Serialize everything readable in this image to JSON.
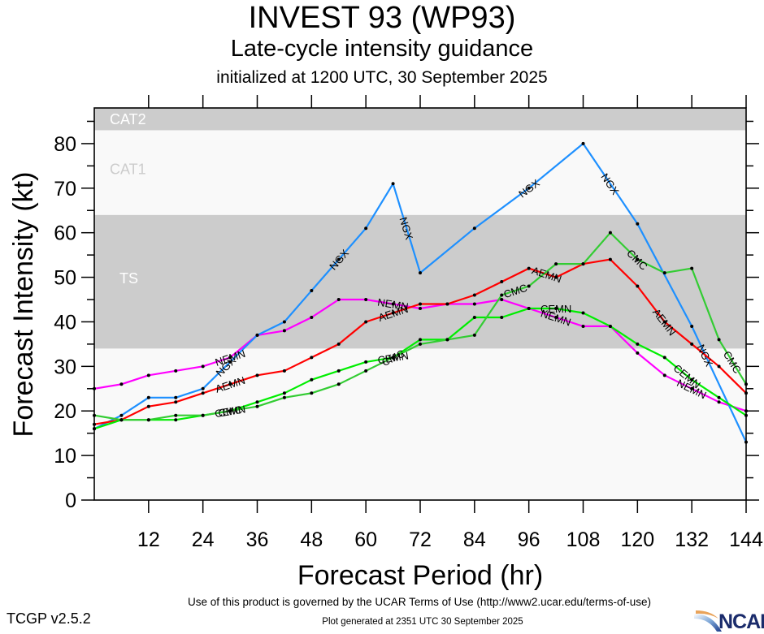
{
  "header": {
    "title": "INVEST 93 (WP93)",
    "subtitle": "Late-cycle intensity guidance",
    "init_line": "initialized at 1200 UTC, 30 September 2025"
  },
  "footer": {
    "terms": "Use of this product is governed by the UCAR Terms of Use (http://www2.ucar.edu/terms-of-use)",
    "version": "TCGP v2.5.2",
    "generated": "Plot generated at 2351 UTC   30 September 2025",
    "logo": "NCAR"
  },
  "chart_data": {
    "type": "line",
    "title": "INVEST 93 (WP93) Late-cycle intensity guidance",
    "xlabel": "Forecast Period (hr)",
    "ylabel": "Forecast Intensity (kt)",
    "xlim": [
      0,
      144
    ],
    "ylim": [
      0,
      88
    ],
    "xticks": [
      12,
      24,
      36,
      48,
      60,
      72,
      84,
      96,
      108,
      120,
      132,
      144
    ],
    "yticks": [
      0,
      10,
      20,
      30,
      40,
      50,
      60,
      70,
      80
    ],
    "grid": false,
    "legend": "inline labels along lines",
    "bands": [
      {
        "name": "TS",
        "from": 34,
        "to": 64,
        "color": "#cccccc",
        "label_color": "#ffffff"
      },
      {
        "name": "CAT1",
        "from": 64,
        "to": 83,
        "color": "#f9f9f9",
        "label_color": "#cccccc"
      },
      {
        "name": "CAT2",
        "from": 83,
        "to": 96,
        "color": "#cccccc",
        "label_color": "#ffffff"
      }
    ],
    "background_color": "#f9f9f9",
    "series": [
      {
        "name": "NEMN",
        "color": "#ff00ff",
        "x": [
          0,
          6,
          12,
          18,
          24,
          30,
          36,
          42,
          48,
          54,
          60,
          66,
          72,
          78,
          84,
          90,
          96,
          102,
          108,
          114,
          120,
          126,
          132,
          138,
          144
        ],
        "y": [
          25,
          26,
          28,
          29,
          30,
          32,
          37,
          38,
          41,
          45,
          45,
          44,
          43,
          44,
          44,
          45,
          43,
          41,
          39,
          39,
          33,
          28,
          25,
          22,
          20
        ],
        "labels_at": [
          30,
          66,
          102,
          132
        ]
      },
      {
        "name": "NGX",
        "color": "#1e90ff",
        "x": [
          0,
          6,
          12,
          18,
          24,
          30,
          36,
          42,
          48,
          54,
          60,
          66,
          72,
          84,
          96,
          108,
          120,
          132,
          144
        ],
        "y": [
          16,
          19,
          23,
          23,
          25,
          31,
          37,
          40,
          47,
          54,
          61,
          71,
          51,
          61,
          70,
          80,
          62,
          39,
          13
        ],
        "labels_at": [
          29,
          54,
          69,
          96,
          114,
          135
        ]
      },
      {
        "name": "AEMN",
        "color": "#ff0000",
        "x": [
          0,
          6,
          12,
          18,
          24,
          30,
          36,
          42,
          48,
          54,
          60,
          66,
          72,
          78,
          84,
          90,
          96,
          102,
          108,
          114,
          120,
          126,
          132,
          138,
          144
        ],
        "y": [
          17,
          18,
          21,
          22,
          24,
          26,
          28,
          29,
          32,
          35,
          40,
          42,
          44,
          44,
          46,
          49,
          52,
          50,
          53,
          54,
          48,
          40,
          35,
          30,
          24
        ],
        "labels_at": [
          30,
          66,
          100,
          126
        ]
      },
      {
        "name": "CEMN",
        "color": "#00ee00",
        "x": [
          0,
          6,
          12,
          18,
          24,
          30,
          36,
          42,
          48,
          54,
          60,
          66,
          72,
          78,
          84,
          90,
          96,
          102,
          108,
          114,
          120,
          126,
          132,
          138,
          144
        ],
        "y": [
          16,
          18,
          18,
          18,
          19,
          20,
          22,
          24,
          27,
          29,
          31,
          32,
          36,
          36,
          41,
          41,
          43,
          43,
          42,
          39,
          35,
          32,
          27,
          23,
          19
        ],
        "labels_at": [
          30,
          66,
          102,
          131
        ]
      },
      {
        "name": "CMC",
        "color": "#33cc33",
        "x": [
          0,
          6,
          12,
          18,
          24,
          30,
          36,
          42,
          48,
          54,
          60,
          66,
          72,
          78,
          84,
          90,
          96,
          102,
          108,
          114,
          120,
          126,
          132,
          138,
          144
        ],
        "y": [
          19,
          18,
          18,
          19,
          19,
          20,
          21,
          23,
          24,
          26,
          29,
          32,
          35,
          36,
          37,
          46,
          48,
          53,
          53,
          60,
          54,
          51,
          52,
          36,
          26
        ],
        "labels_at": [
          30,
          66,
          93,
          120,
          141
        ]
      }
    ]
  }
}
